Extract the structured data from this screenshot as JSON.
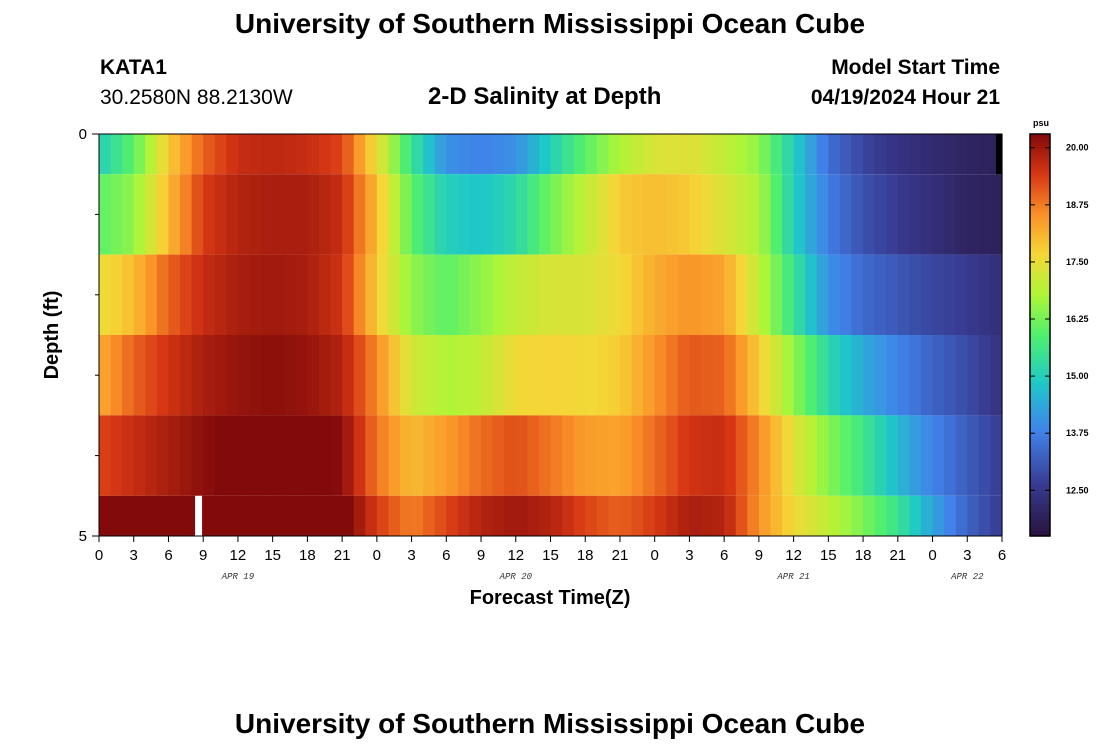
{
  "header": {
    "title": "University of Southern Mississippi Ocean Cube",
    "station_name": "KATA1",
    "station_coords": "30.2580N  88.2130W",
    "chart_title": "2-D Salinity at Depth",
    "model_label": "Model Start Time",
    "model_time": "04/19/2024 Hour 21"
  },
  "footer": {
    "title": "University of Southern Mississippi Ocean Cube"
  },
  "chart_data": {
    "type": "heatmap",
    "title": "2-D Salinity at Depth",
    "xlabel": "Forecast Time(Z)",
    "ylabel": "Depth (ft)",
    "colorbar_unit": "psu",
    "colorbar_ticks": [
      "20.00",
      "18.75",
      "17.50",
      "16.25",
      "15.00",
      "13.75",
      "12.50"
    ],
    "colorbar_range": [
      11.5,
      20.3
    ],
    "xlim": [
      0,
      78
    ],
    "ylim": [
      0,
      5
    ],
    "x_tick_labels": [
      "0",
      "3",
      "6",
      "9",
      "12",
      "15",
      "18",
      "21",
      "0",
      "3",
      "6",
      "9",
      "12",
      "15",
      "18",
      "21",
      "0",
      "3",
      "6",
      "9",
      "12",
      "15",
      "18",
      "21",
      "0",
      "3",
      "6"
    ],
    "y_tick_labels": [
      "0",
      "5"
    ],
    "date_labels": [
      {
        "label": "APR 19",
        "hour": 12
      },
      {
        "label": "APR 20",
        "hour": 36
      },
      {
        "label": "APR 21",
        "hour": 60
      },
      {
        "label": "APR 22",
        "hour": 75
      }
    ],
    "depth_bins": [
      [
        0,
        0.5
      ],
      [
        0.5,
        1.5
      ],
      [
        1.5,
        2.5
      ],
      [
        2.5,
        3.5
      ],
      [
        3.5,
        4.5
      ],
      [
        4.5,
        5
      ]
    ],
    "time_hours": [
      0,
      3,
      6,
      9,
      12,
      15,
      18,
      21,
      24,
      27,
      30,
      33,
      36,
      39,
      42,
      45,
      48,
      51,
      54,
      57,
      60,
      63,
      66,
      69,
      72,
      75,
      78
    ],
    "salinity": [
      [
        15.0,
        16.0,
        17.8,
        19.0,
        19.6,
        19.7,
        19.6,
        19.3,
        17.5,
        15.5,
        14.0,
        13.8,
        14.0,
        15.0,
        16.0,
        16.8,
        17.3,
        17.4,
        17.0,
        16.5,
        15.0,
        13.5,
        12.8,
        12.4,
        12.2,
        12.0,
        11.9
      ],
      [
        16.0,
        16.5,
        18.0,
        19.4,
        19.8,
        19.9,
        19.9,
        19.6,
        18.0,
        16.0,
        15.0,
        14.8,
        15.2,
        16.2,
        17.0,
        17.8,
        18.0,
        17.8,
        17.3,
        16.8,
        15.0,
        13.7,
        13.0,
        12.6,
        12.3,
        12.0,
        11.9
      ],
      [
        17.5,
        18.0,
        19.0,
        19.6,
        19.9,
        20.0,
        19.9,
        19.5,
        17.8,
        16.5,
        16.0,
        16.5,
        17.0,
        17.3,
        17.3,
        17.6,
        18.2,
        18.5,
        18.3,
        17.0,
        15.5,
        14.0,
        13.4,
        13.1,
        12.8,
        12.6,
        12.3
      ],
      [
        18.2,
        19.0,
        19.5,
        19.9,
        20.1,
        20.2,
        20.1,
        19.8,
        18.6,
        17.2,
        16.8,
        17.0,
        17.6,
        17.7,
        17.6,
        17.8,
        18.5,
        19.1,
        19.0,
        17.8,
        16.5,
        15.2,
        14.4,
        13.8,
        13.3,
        12.9,
        12.4
      ],
      [
        19.3,
        19.6,
        19.9,
        20.2,
        20.4,
        20.5,
        20.6,
        20.2,
        18.8,
        18.0,
        18.4,
        18.9,
        19.2,
        18.8,
        18.4,
        18.3,
        18.9,
        19.5,
        19.6,
        18.6,
        17.4,
        16.4,
        15.6,
        14.6,
        13.8,
        13.2,
        12.6
      ],
      [
        20.5,
        20.8,
        21.0,
        21.3,
        21.4,
        21.3,
        21.0,
        20.5,
        19.4,
        18.7,
        19.3,
        19.8,
        20.0,
        19.8,
        19.3,
        19.0,
        19.4,
        19.9,
        19.8,
        18.5,
        17.6,
        17.0,
        16.3,
        15.5,
        14.3,
        13.3,
        12.6
      ]
    ],
    "missing_cells": [
      {
        "depth_index": 5,
        "hour": 8.6
      },
      {
        "depth_index": 0,
        "hour": 78
      }
    ]
  }
}
